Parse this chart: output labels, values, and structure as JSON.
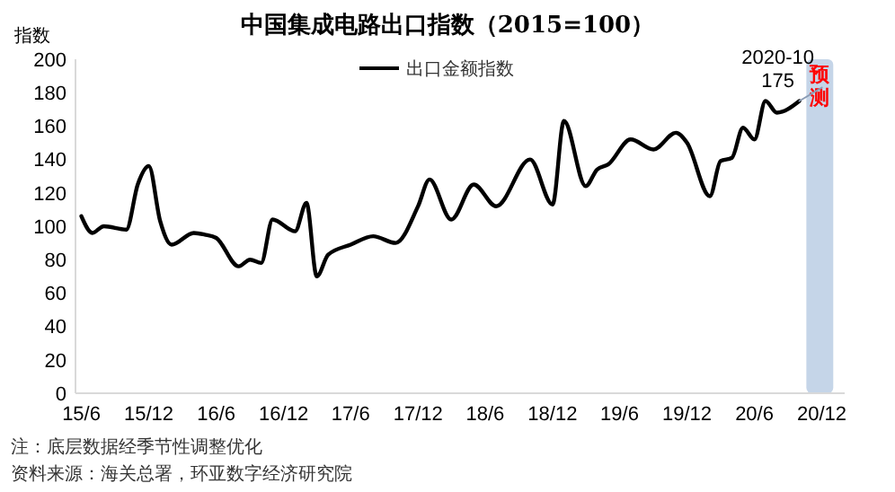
{
  "chart_data": {
    "type": "line",
    "title": "中国集成电路出口指数（2015=100）",
    "ylabel": "指数",
    "x": [
      "2015-06",
      "2015-07",
      "2015-08",
      "2015-10",
      "2015-11",
      "2015-12",
      "2016-01",
      "2016-02",
      "2016-04",
      "2016-05",
      "2016-06",
      "2016-08",
      "2016-09",
      "2016-10",
      "2016-11",
      "2017-01",
      "2017-02",
      "2017-03",
      "2017-04",
      "2017-06",
      "2017-08",
      "2017-10",
      "2017-12",
      "2018-01",
      "2018-03",
      "2018-05",
      "2018-07",
      "2018-10",
      "2018-12",
      "2019-01",
      "2019-03",
      "2019-04",
      "2019-05",
      "2019-07",
      "2019-09",
      "2019-11",
      "2019-12",
      "2020-02",
      "2020-03",
      "2020-04",
      "2020-05",
      "2020-06",
      "2020-07",
      "2020-08",
      "2020-10"
    ],
    "series": [
      {
        "name": "出口金额指数",
        "color": "#000000",
        "values": [
          106,
          96,
          100,
          98,
          125,
          136,
          103,
          89,
          96,
          95,
          93,
          76,
          80,
          78,
          104,
          97,
          114,
          70,
          83,
          89,
          94,
          90,
          112,
          128,
          104,
          125,
          112,
          140,
          113,
          163,
          124,
          134,
          137,
          152,
          146,
          156,
          150,
          118,
          139,
          141,
          159,
          152,
          175,
          168,
          175
        ]
      },
      {
        "color": "#8c9db5",
        "x": [
          "2020-10",
          "2020-12"
        ],
        "values": [
          175,
          183
        ]
      }
    ],
    "xlim": [
      "2015-05-16",
      "2021-02"
    ],
    "xticks": [
      {
        "value": "2015-06",
        "label": "15/6"
      },
      {
        "value": "2015-12",
        "label": "15/12"
      },
      {
        "value": "2016-06",
        "label": "16/6"
      },
      {
        "value": "2016-12",
        "label": "16/12"
      },
      {
        "value": "2017-06",
        "label": "17/6"
      },
      {
        "value": "2017-12",
        "label": "17/12"
      },
      {
        "value": "2018-06",
        "label": "18/6"
      },
      {
        "value": "2018-12",
        "label": "18/12"
      },
      {
        "value": "2019-06",
        "label": "19/6"
      },
      {
        "value": "2019-12",
        "label": "19/12"
      },
      {
        "value": "2020-06",
        "label": "20/6"
      },
      {
        "value": "2020-12",
        "label": "20/12"
      }
    ],
    "ylim": [
      0,
      200
    ],
    "yticks": [
      0,
      20,
      40,
      60,
      80,
      100,
      120,
      140,
      160,
      180,
      200
    ],
    "bands": [
      {
        "axis": "x",
        "from": "2020-10-20",
        "to": "2021-01",
        "label": "预测",
        "color": "#c5d5e8"
      }
    ],
    "annotations": [
      {
        "text": "2020-10\n175",
        "x": "2020-10",
        "y": 175
      },
      "注：底层数据经季节性调整优化",
      "资料来源：海关总署，环亚数字经济研究院"
    ],
    "legend": "top",
    "grid": false,
    "marker": "none",
    "line_style": "solid"
  }
}
